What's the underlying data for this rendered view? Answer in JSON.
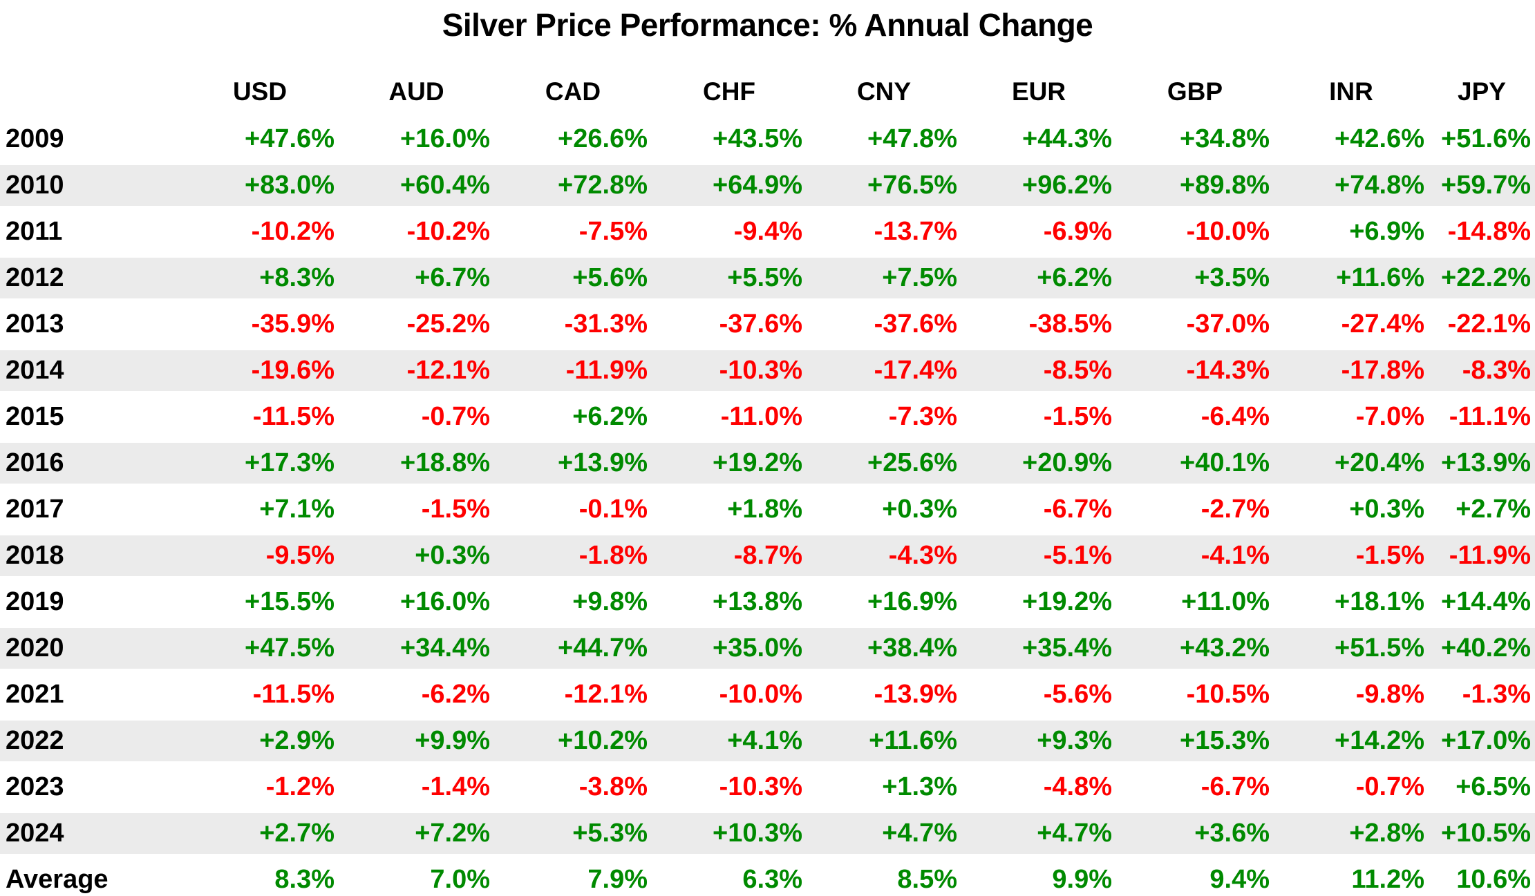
{
  "chart_data": {
    "type": "table",
    "title": "Silver Price Performance: % Annual Change",
    "columns": [
      "USD",
      "AUD",
      "CAD",
      "CHF",
      "CNY",
      "EUR",
      "GBP",
      "INR",
      "JPY"
    ],
    "rows": [
      {
        "label": "2009",
        "values": [
          "+47.6%",
          "+16.0%",
          "+26.6%",
          "+43.5%",
          "+47.8%",
          "+44.3%",
          "+34.8%",
          "+42.6%",
          "+51.6%"
        ]
      },
      {
        "label": "2010",
        "values": [
          "+83.0%",
          "+60.4%",
          "+72.8%",
          "+64.9%",
          "+76.5%",
          "+96.2%",
          "+89.8%",
          "+74.8%",
          "+59.7%"
        ]
      },
      {
        "label": "2011",
        "values": [
          "-10.2%",
          "-10.2%",
          "-7.5%",
          "-9.4%",
          "-13.7%",
          "-6.9%",
          "-10.0%",
          "+6.9%",
          "-14.8%"
        ]
      },
      {
        "label": "2012",
        "values": [
          "+8.3%",
          "+6.7%",
          "+5.6%",
          "+5.5%",
          "+7.5%",
          "+6.2%",
          "+3.5%",
          "+11.6%",
          "+22.2%"
        ]
      },
      {
        "label": "2013",
        "values": [
          "-35.9%",
          "-25.2%",
          "-31.3%",
          "-37.6%",
          "-37.6%",
          "-38.5%",
          "-37.0%",
          "-27.4%",
          "-22.1%"
        ]
      },
      {
        "label": "2014",
        "values": [
          "-19.6%",
          "-12.1%",
          "-11.9%",
          "-10.3%",
          "-17.4%",
          "-8.5%",
          "-14.3%",
          "-17.8%",
          "-8.3%"
        ]
      },
      {
        "label": "2015",
        "values": [
          "-11.5%",
          "-0.7%",
          "+6.2%",
          "-11.0%",
          "-7.3%",
          "-1.5%",
          "-6.4%",
          "-7.0%",
          "-11.1%"
        ]
      },
      {
        "label": "2016",
        "values": [
          "+17.3%",
          "+18.8%",
          "+13.9%",
          "+19.2%",
          "+25.6%",
          "+20.9%",
          "+40.1%",
          "+20.4%",
          "+13.9%"
        ]
      },
      {
        "label": "2017",
        "values": [
          "+7.1%",
          "-1.5%",
          "-0.1%",
          "+1.8%",
          "+0.3%",
          "-6.7%",
          "-2.7%",
          "+0.3%",
          "+2.7%"
        ]
      },
      {
        "label": "2018",
        "values": [
          "-9.5%",
          "+0.3%",
          "-1.8%",
          "-8.7%",
          "-4.3%",
          "-5.1%",
          "-4.1%",
          "-1.5%",
          "-11.9%"
        ]
      },
      {
        "label": "2019",
        "values": [
          "+15.5%",
          "+16.0%",
          "+9.8%",
          "+13.8%",
          "+16.9%",
          "+19.2%",
          "+11.0%",
          "+18.1%",
          "+14.4%"
        ]
      },
      {
        "label": "2020",
        "values": [
          "+47.5%",
          "+34.4%",
          "+44.7%",
          "+35.0%",
          "+38.4%",
          "+35.4%",
          "+43.2%",
          "+51.5%",
          "+40.2%"
        ]
      },
      {
        "label": "2021",
        "values": [
          "-11.5%",
          "-6.2%",
          "-12.1%",
          "-10.0%",
          "-13.9%",
          "-5.6%",
          "-10.5%",
          "-9.8%",
          "-1.3%"
        ]
      },
      {
        "label": "2022",
        "values": [
          "+2.9%",
          "+9.9%",
          "+10.2%",
          "+4.1%",
          "+11.6%",
          "+9.3%",
          "+15.3%",
          "+14.2%",
          "+17.0%"
        ]
      },
      {
        "label": "2023",
        "values": [
          "-1.2%",
          "-1.4%",
          "-3.8%",
          "-10.3%",
          "+1.3%",
          "-4.8%",
          "-6.7%",
          "-0.7%",
          "+6.5%"
        ]
      },
      {
        "label": "2024",
        "values": [
          "+2.7%",
          "+7.2%",
          "+5.3%",
          "+10.3%",
          "+4.7%",
          "+4.7%",
          "+3.6%",
          "+2.8%",
          "+10.5%"
        ]
      },
      {
        "label": "Average",
        "values": [
          "8.3%",
          "7.0%",
          "7.9%",
          "6.3%",
          "8.5%",
          "9.9%",
          "9.4%",
          "11.2%",
          "10.6%"
        ]
      }
    ],
    "layout": {
      "stripe_rows": "even",
      "value_alignment": "right",
      "header_alignment": "center"
    },
    "colors": {
      "positive": "#008a00",
      "negative": "#ff0000",
      "stripe": "#ebebeb",
      "text": "#000000",
      "background": "#ffffff"
    }
  }
}
